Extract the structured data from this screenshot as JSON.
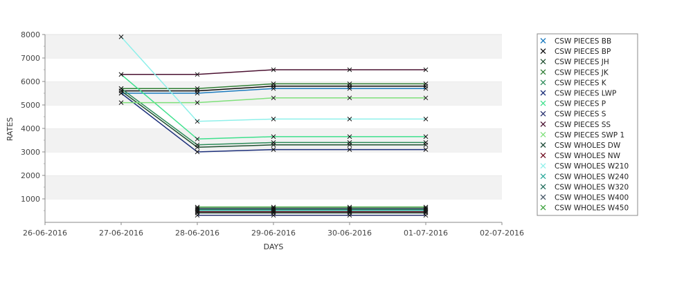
{
  "chart_data": {
    "type": "line",
    "xlabel": "DAYS",
    "ylabel": "RATES",
    "x_ticks": [
      "26-06-2016",
      "27-06-2016",
      "28-06-2016",
      "29-06-2016",
      "30-06-2016",
      "01-07-2016",
      "02-07-2016"
    ],
    "xlim": [
      "26-06-2016",
      "02-07-2016"
    ],
    "y_ticks": [
      1000,
      2000,
      3000,
      4000,
      5000,
      6000,
      7000,
      8000
    ],
    "ylim": [
      0,
      8000
    ],
    "grid": "horizontal alternating bands",
    "legend_position": "right",
    "x": [
      "28-06-2016",
      "29-06-2016",
      "30-06-2016",
      "01-07-2016"
    ],
    "series": [
      {
        "name": "CSW PIECES BB",
        "color": "#1a7abf",
        "x": [
          "27-06-2016",
          "28-06-2016",
          "29-06-2016",
          "30-06-2016",
          "01-07-2016"
        ],
        "values": [
          5500,
          5500,
          5700,
          5700,
          5700
        ]
      },
      {
        "name": "CSW PIECES BP",
        "color": "#0a0a0a",
        "x": [
          "27-06-2016",
          "28-06-2016",
          "29-06-2016",
          "30-06-2016",
          "01-07-2016"
        ],
        "values": [
          5600,
          5600,
          5800,
          5800,
          5800
        ]
      },
      {
        "name": "CSW PIECES JH",
        "color": "#1f4f2f",
        "x": [
          "27-06-2016",
          "28-06-2016",
          "29-06-2016",
          "30-06-2016",
          "01-07-2016"
        ],
        "values": [
          5600,
          3200,
          3300,
          3300,
          3300
        ]
      },
      {
        "name": "CSW PIECES JK",
        "color": "#2e7d32",
        "x": [
          "27-06-2016",
          "28-06-2016",
          "29-06-2016",
          "30-06-2016",
          "01-07-2016"
        ],
        "values": [
          5700,
          5700,
          5900,
          5900,
          5900
        ]
      },
      {
        "name": "CSW PIECES K",
        "color": "#2b8a57",
        "x": [
          "27-06-2016",
          "28-06-2016",
          "29-06-2016",
          "30-06-2016",
          "01-07-2016"
        ],
        "values": [
          5700,
          3300,
          3400,
          3400,
          3400
        ]
      },
      {
        "name": "CSW PIECES LWP",
        "color": "#1c2f7a",
        "x": [
          "27-06-2016",
          "28-06-2016",
          "29-06-2016",
          "30-06-2016",
          "01-07-2016"
        ],
        "values": [
          5500,
          3000,
          3100,
          3100,
          3100
        ]
      },
      {
        "name": "CSW PIECES P",
        "color": "#3de08c",
        "x": [
          "27-06-2016",
          "28-06-2016",
          "29-06-2016",
          "30-06-2016",
          "01-07-2016"
        ],
        "values": [
          6300,
          3550,
          3650,
          3650,
          3650
        ]
      },
      {
        "name": "CSW PIECES S",
        "color": "#27306e",
        "x": [
          "28-06-2016",
          "29-06-2016",
          "30-06-2016",
          "01-07-2016"
        ],
        "values": [
          300,
          300,
          300,
          300
        ]
      },
      {
        "name": "CSW PIECES SS",
        "color": "#4a1030",
        "x": [
          "27-06-2016",
          "28-06-2016",
          "29-06-2016",
          "30-06-2016",
          "01-07-2016"
        ],
        "values": [
          6300,
          6300,
          6500,
          6500,
          6500
        ]
      },
      {
        "name": "CSW PIECES SWP 1",
        "color": "#7ee07a",
        "x": [
          "27-06-2016",
          "28-06-2016",
          "29-06-2016",
          "30-06-2016",
          "01-07-2016"
        ],
        "values": [
          5100,
          5100,
          5300,
          5300,
          5300
        ]
      },
      {
        "name": "CSW WHOLES DW",
        "color": "#1f4d3a",
        "x": [
          "28-06-2016",
          "29-06-2016",
          "30-06-2016",
          "01-07-2016"
        ],
        "values": [
          400,
          400,
          400,
          400
        ]
      },
      {
        "name": "CSW WHOLES NW",
        "color": "#6e0a1e",
        "x": [
          "28-06-2016",
          "29-06-2016",
          "30-06-2016",
          "01-07-2016"
        ],
        "values": [
          450,
          450,
          450,
          450
        ]
      },
      {
        "name": "CSW WHOLES W210",
        "color": "#8ef0ea",
        "x": [
          "27-06-2016",
          "28-06-2016",
          "29-06-2016",
          "30-06-2016",
          "01-07-2016"
        ],
        "values": [
          7900,
          4300,
          4400,
          4400,
          4400
        ]
      },
      {
        "name": "CSW WHOLES W240",
        "color": "#2aa89a",
        "x": [
          "28-06-2016",
          "29-06-2016",
          "30-06-2016",
          "01-07-2016"
        ],
        "values": [
          500,
          500,
          500,
          500
        ]
      },
      {
        "name": "CSW WHOLES W320",
        "color": "#1e6a5a",
        "x": [
          "28-06-2016",
          "29-06-2016",
          "30-06-2016",
          "01-07-2016"
        ],
        "values": [
          550,
          550,
          550,
          550
        ]
      },
      {
        "name": "CSW WHOLES W400",
        "color": "#4a5a6a",
        "x": [
          "28-06-2016",
          "29-06-2016",
          "30-06-2016",
          "01-07-2016"
        ],
        "values": [
          600,
          600,
          600,
          600
        ]
      },
      {
        "name": "CSW WHOLES W450",
        "color": "#3aa03a",
        "x": [
          "28-06-2016",
          "29-06-2016",
          "30-06-2016",
          "01-07-2016"
        ],
        "values": [
          650,
          650,
          650,
          650
        ]
      }
    ]
  }
}
